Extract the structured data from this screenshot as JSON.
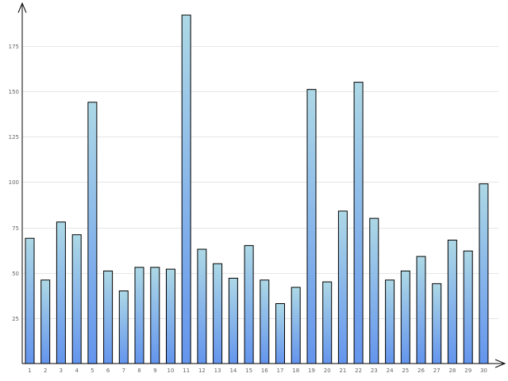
{
  "chart_data": {
    "type": "bar",
    "title": "",
    "xlabel": "",
    "ylabel": "",
    "categories": [
      "1",
      "2",
      "3",
      "4",
      "5",
      "6",
      "7",
      "8",
      "9",
      "10",
      "11",
      "12",
      "13",
      "14",
      "15",
      "16",
      "17",
      "18",
      "19",
      "20",
      "21",
      "22",
      "23",
      "24",
      "25",
      "26",
      "27",
      "28",
      "29",
      "30"
    ],
    "values": [
      69,
      46,
      78,
      71,
      144,
      51,
      40,
      53,
      53,
      52,
      192,
      63,
      55,
      47,
      65,
      46,
      33,
      42,
      151,
      45,
      84,
      155,
      80,
      46,
      51,
      59,
      44,
      68,
      62,
      99
    ],
    "ylim": [
      0,
      192
    ],
    "yticks": [
      25,
      50,
      75,
      100,
      125,
      150,
      175
    ],
    "ytick_labels": [
      "25",
      "50",
      "75",
      "100",
      "125",
      "150",
      "175"
    ],
    "grid": true,
    "legend": "none",
    "colors": {
      "bar_top": "#add8e6",
      "bar_bottom": "#6495ed",
      "bar_stroke": "#000000",
      "grid": "#e6e6e6",
      "axis": "#000000",
      "tick_text": "#666666"
    }
  }
}
